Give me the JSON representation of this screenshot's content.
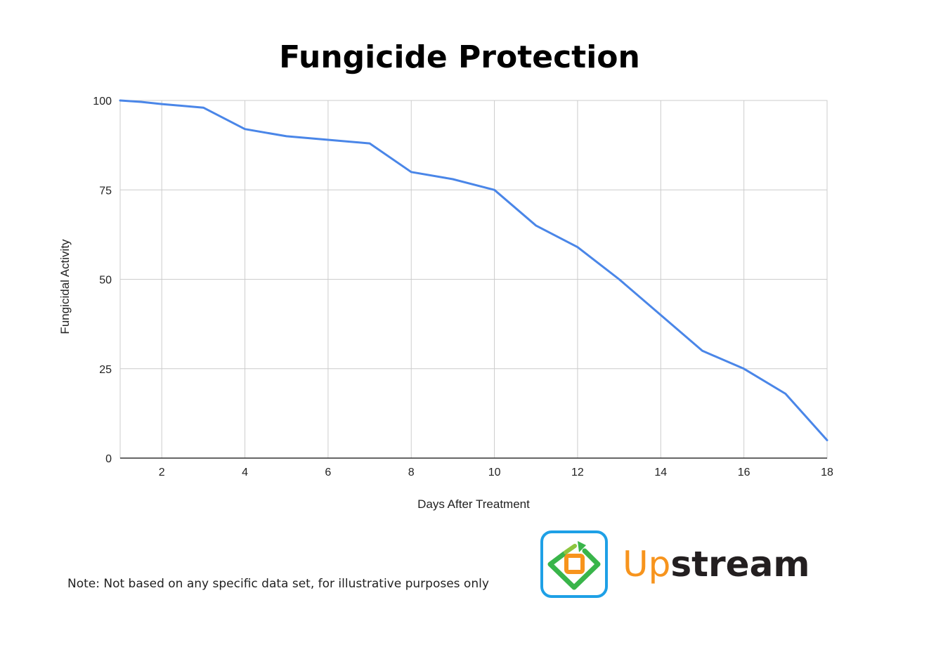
{
  "chart_data": {
    "type": "line",
    "title": "Fungicide Protection",
    "xlabel": "Days After Treatment",
    "ylabel": "Fungicidal Activity",
    "xlim": [
      1,
      18
    ],
    "ylim": [
      0,
      100
    ],
    "x_ticks": [
      2,
      4,
      6,
      8,
      10,
      12,
      14,
      16,
      18
    ],
    "y_ticks": [
      0,
      25,
      50,
      75,
      100
    ],
    "grid": true,
    "legend": "none",
    "series": [
      {
        "color": "#4a86e8",
        "x": [
          1,
          1.5,
          2,
          3,
          4,
          5,
          6,
          7,
          8,
          9,
          10,
          11,
          12,
          13,
          14,
          15,
          16,
          17,
          18
        ],
        "y": [
          100,
          99.6,
          99,
          98,
          92,
          90,
          89,
          88,
          80,
          78,
          75,
          65,
          59,
          50,
          40,
          30,
          25,
          18,
          5
        ]
      }
    ]
  },
  "note": "Note: Not based on any specific data set, for illustrative purposes only",
  "brand": {
    "part1": "Up",
    "part2": "stream",
    "part1_color": "#f7941d",
    "part2_color": "#231f20",
    "logo_icon": "recycle-arrow-logo-icon"
  }
}
